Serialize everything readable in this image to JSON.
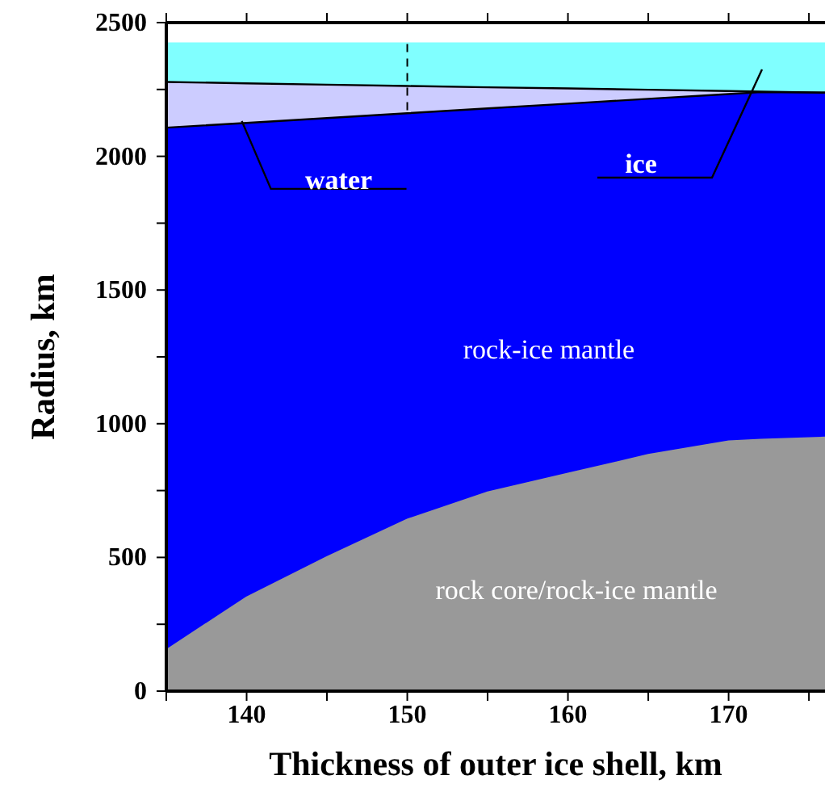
{
  "chart_data": {
    "type": "area",
    "stacked": true,
    "xlabel": "Thickness of outer ice shell, km",
    "ylabel": "Radius, km",
    "x": [
      135,
      140,
      145,
      150,
      155,
      160,
      165,
      170,
      172,
      176
    ],
    "series": [
      {
        "color": "#999999",
        "values": [
          153,
          350,
          501,
          641,
          743,
          813,
          883,
          934,
          940,
          948
        ]
      },
      {
        "color": "#0000ff",
        "values": [
          1954,
          1775,
          1642,
          1520,
          1436,
          1384,
          1332,
          1299,
          1300,
          1290
        ]
      },
      {
        "color": "#ccccff",
        "values": [
          171,
          148,
          125,
          102,
          79,
          57,
          34,
          11,
          2,
          0
        ]
      },
      {
        "color": "#80ffff",
        "values": [
          142,
          147,
          152,
          157,
          162,
          166,
          171,
          176,
          178,
          182
        ]
      }
    ],
    "xlim": [
      135,
      176
    ],
    "ylim": [
      0,
      2500
    ],
    "xticks": [
      {
        "value": 135,
        "label": null
      },
      140,
      {
        "value": 145,
        "label": null
      },
      150,
      {
        "value": 155,
        "label": null
      },
      160,
      {
        "value": 165,
        "label": null
      },
      170,
      {
        "value": 175,
        "label": null
      }
    ],
    "yticks": [
      0,
      {
        "value": 250,
        "label": null
      },
      500,
      {
        "value": 750,
        "label": null
      },
      1000,
      {
        "value": 1250,
        "label": null
      },
      1500,
      {
        "value": 1750,
        "label": null
      },
      2000,
      {
        "value": 2250,
        "label": null
      },
      2500
    ],
    "ref_lines": [
      {
        "axis": "x",
        "value": 150,
        "line_style": "dashed"
      }
    ],
    "annotations": [
      {
        "text": "water",
        "x": 139.7,
        "y": 2132
      },
      "ice",
      "rock-ice mantle",
      "rock core/rock-ice mantle"
    ],
    "grid": false,
    "legend": false
  }
}
